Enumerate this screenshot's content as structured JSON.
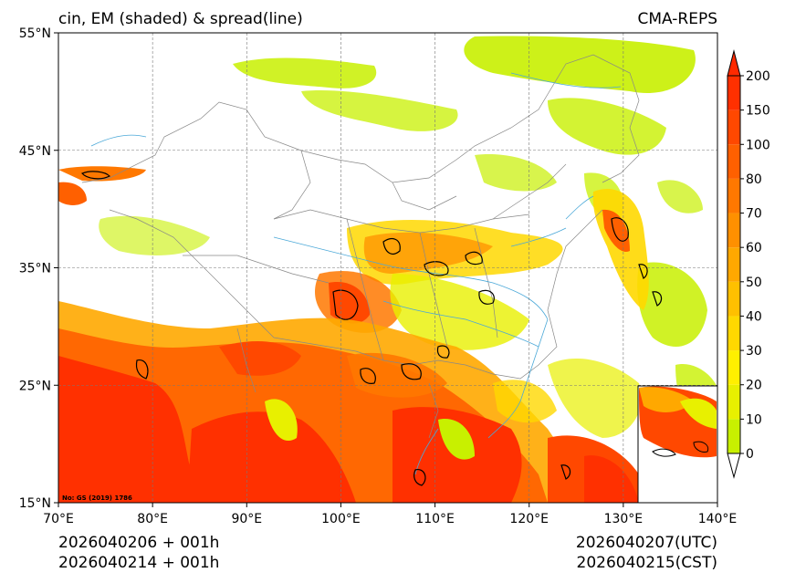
{
  "title_left": "cin, EM (shaded) & spread(line)",
  "title_right": "CMA-REPS",
  "map": {
    "lon_min": 70,
    "lon_max": 140,
    "lat_min": 15,
    "lat_max": 55,
    "x_ticks": [
      {
        "value": 70,
        "label": "70°E"
      },
      {
        "value": 80,
        "label": "80°E"
      },
      {
        "value": 90,
        "label": "90°E"
      },
      {
        "value": 100,
        "label": "100°E"
      },
      {
        "value": 110,
        "label": "110°E"
      },
      {
        "value": 120,
        "label": "120°E"
      },
      {
        "value": 130,
        "label": "130°E"
      },
      {
        "value": 140,
        "label": "140°E"
      }
    ],
    "y_ticks": [
      {
        "value": 55,
        "label": "55°N"
      },
      {
        "value": 45,
        "label": "45°N"
      },
      {
        "value": 35,
        "label": "35°N"
      },
      {
        "value": 25,
        "label": "25°N"
      },
      {
        "value": 15,
        "label": "15°N"
      }
    ],
    "credit": "No: GS (2019) 1786"
  },
  "colorbar": {
    "levels": [
      "0",
      "10",
      "20",
      "30",
      "40",
      "50",
      "60",
      "70",
      "80",
      "100",
      "150",
      "200"
    ],
    "colors": [
      "#c8f000",
      "#e8f000",
      "#fff000",
      "#ffd800",
      "#ffc000",
      "#ffa800",
      "#ff9000",
      "#ff7800",
      "#ff6000",
      "#ff4800",
      "#ff3000"
    ],
    "over_color": "#ff2a00",
    "under_color": "#ffffff"
  },
  "footer": {
    "init_utc": "2026040206  +  001h",
    "init_cst": "2026040214  +  001h",
    "valid_utc": "2026040207(UTC)",
    "valid_cst": "2026040215(CST)"
  }
}
